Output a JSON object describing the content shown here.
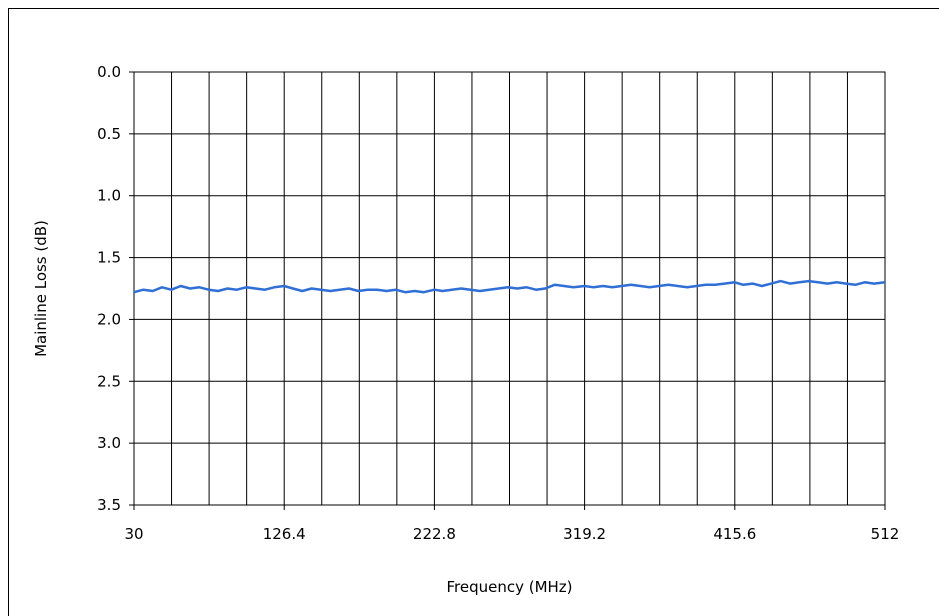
{
  "chart_data": {
    "type": "line",
    "title": "",
    "xlabel": "Frequency (MHz)",
    "ylabel": "Mainline Loss (dB)",
    "xlim": [
      30,
      512
    ],
    "ylim": [
      0,
      3.5
    ],
    "y_inverted": true,
    "grid": true,
    "x_ticks": [
      "30",
      "126.4",
      "222.8",
      "319.2",
      "415.6",
      "512"
    ],
    "y_ticks": [
      "0.0",
      "0.5",
      "1.0",
      "1.5",
      "2.0",
      "2.5",
      "3.0",
      "3.5"
    ],
    "x_gridline_count": 20,
    "line_color": "#2f6fd6",
    "series": [
      {
        "x": [
          30,
          36,
          42,
          48,
          54,
          60,
          66,
          72,
          78,
          84,
          90,
          96,
          102,
          108,
          114,
          120,
          126.4,
          132,
          138,
          144,
          150,
          156,
          162,
          168,
          174,
          180,
          186,
          192,
          198,
          204,
          210,
          216,
          222.8,
          228,
          234,
          240,
          246,
          252,
          258,
          264,
          270,
          276,
          282,
          288,
          294,
          300,
          306,
          312,
          319.2,
          325,
          331,
          337,
          343,
          349,
          355,
          361,
          367,
          373,
          379,
          385,
          391,
          397,
          403,
          409,
          415.6,
          421,
          427,
          433,
          439,
          445,
          451,
          457,
          463,
          469,
          475,
          481,
          487,
          493,
          499,
          505,
          512
        ],
        "y": [
          1.78,
          1.76,
          1.77,
          1.74,
          1.76,
          1.73,
          1.75,
          1.74,
          1.76,
          1.77,
          1.75,
          1.76,
          1.74,
          1.75,
          1.76,
          1.74,
          1.73,
          1.75,
          1.77,
          1.75,
          1.76,
          1.77,
          1.76,
          1.75,
          1.77,
          1.76,
          1.76,
          1.77,
          1.76,
          1.78,
          1.77,
          1.78,
          1.76,
          1.77,
          1.76,
          1.75,
          1.76,
          1.77,
          1.76,
          1.75,
          1.74,
          1.75,
          1.74,
          1.76,
          1.75,
          1.72,
          1.73,
          1.74,
          1.73,
          1.74,
          1.73,
          1.74,
          1.73,
          1.72,
          1.73,
          1.74,
          1.73,
          1.72,
          1.73,
          1.74,
          1.73,
          1.72,
          1.72,
          1.71,
          1.7,
          1.72,
          1.71,
          1.73,
          1.71,
          1.69,
          1.71,
          1.7,
          1.69,
          1.7,
          1.71,
          1.7,
          1.71,
          1.72,
          1.7,
          1.71,
          1.7
        ]
      }
    ]
  }
}
